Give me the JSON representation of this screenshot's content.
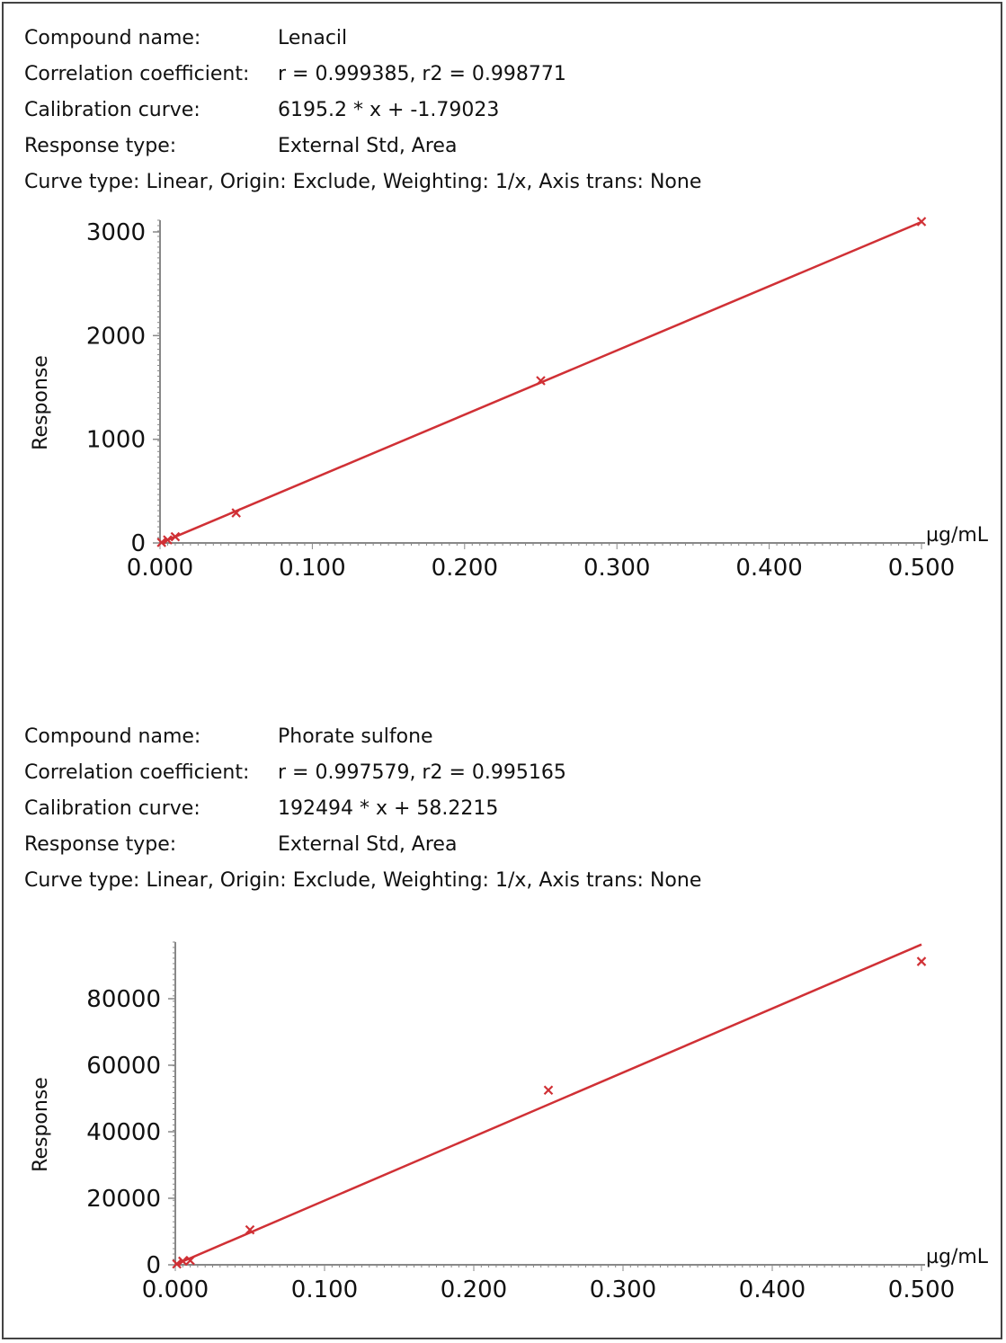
{
  "panels": [
    {
      "compound_label": "Compound name:",
      "compound_value": "Lenacil",
      "corr_label": "Correlation coefficient:",
      "corr_value": "r = 0.999385,  r2 = 0.998771",
      "cal_label": "Calibration curve:",
      "cal_value": "6195.2 * x + -1.79023",
      "resp_label": "Response type:",
      "resp_value": "External Std, Area",
      "curve_line": "Curve type: Linear,  Origin: Exclude,  Weighting: 1/x,  Axis trans: None"
    },
    {
      "compound_label": "Compound name:",
      "compound_value": "Phorate sulfone",
      "corr_label": "Correlation coefficient:",
      "corr_value": "r = 0.997579, r2 = 0.995165",
      "cal_label": "Calibration curve:",
      "cal_value": "192494 * x + 58.2215",
      "resp_label": "Response type:",
      "resp_value": "External Std, Area",
      "curve_line": "Curve type: Linear, Origin: Exclude, Weighting: 1/x, Axis trans: None"
    }
  ],
  "colors": {
    "series": "#d03035",
    "axis": "#888888",
    "text": "#111111"
  },
  "chart_data": [
    {
      "type": "scatter",
      "title": "",
      "xlabel": "µg/mL",
      "ylabel": "Response",
      "xlim": [
        0,
        0.5
      ],
      "ylim": [
        0,
        3000
      ],
      "x_ticks": [
        "0.000",
        "0.100",
        "0.200",
        "0.300",
        "0.400",
        "0.500"
      ],
      "y_ticks": [
        "0",
        "1000",
        "2000",
        "3000"
      ],
      "grid": false,
      "points": {
        "x": [
          0.001,
          0.005,
          0.01,
          0.05,
          0.25,
          0.5
        ],
        "y": [
          5,
          29,
          60,
          290,
          1565,
          3100
        ]
      },
      "fit": {
        "slope": 6195.2,
        "intercept": -1.79023
      }
    },
    {
      "type": "scatter",
      "title": "",
      "xlabel": "µg/mL",
      "ylabel": "Response",
      "xlim": [
        0,
        0.5
      ],
      "ylim": [
        0,
        90000
      ],
      "x_ticks": [
        "0.000",
        "0.100",
        "0.200",
        "0.300",
        "0.400",
        "0.500"
      ],
      "y_ticks": [
        "0",
        "20000",
        "40000",
        "60000",
        "80000"
      ],
      "grid": false,
      "points": {
        "x": [
          0.001,
          0.005,
          0.01,
          0.05,
          0.25,
          0.5
        ],
        "y": [
          250,
          1100,
          1300,
          10500,
          52500,
          91200
        ]
      },
      "fit": {
        "slope": 192494,
        "intercept": 58.2215
      }
    }
  ]
}
